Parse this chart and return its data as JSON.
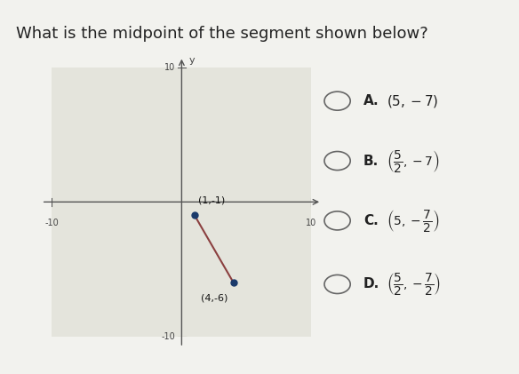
{
  "title": "What is the midpoint of the segment shown below?",
  "title_fontsize": 13,
  "bg_color": "#f2f2ee",
  "graph_bg": "#e4e4dc",
  "point1": [
    1,
    -1
  ],
  "point2": [
    4,
    -6
  ],
  "point1_label": "(1,-1)",
  "point2_label": "(4,-6)",
  "segment_color": "#8B4040",
  "dot_color": "#1a3a6b",
  "xlim": [
    -10,
    10
  ],
  "ylim": [
    -10,
    10
  ],
  "tick_labels": {
    "x_pos": 10,
    "x_neg": -10,
    "y_pos": 10,
    "y_neg": -10
  },
  "choices_A": "(5, -7)",
  "choices_B_num": "5",
  "choices_B_den": "2",
  "choices_B_y": "-7",
  "choices_C_x": "5",
  "choices_C_num": "7",
  "choices_C_den": "2",
  "choices_D_xnum": "5",
  "choices_D_xden": "2",
  "choices_D_ynum": "7",
  "choices_D_yden": "2"
}
